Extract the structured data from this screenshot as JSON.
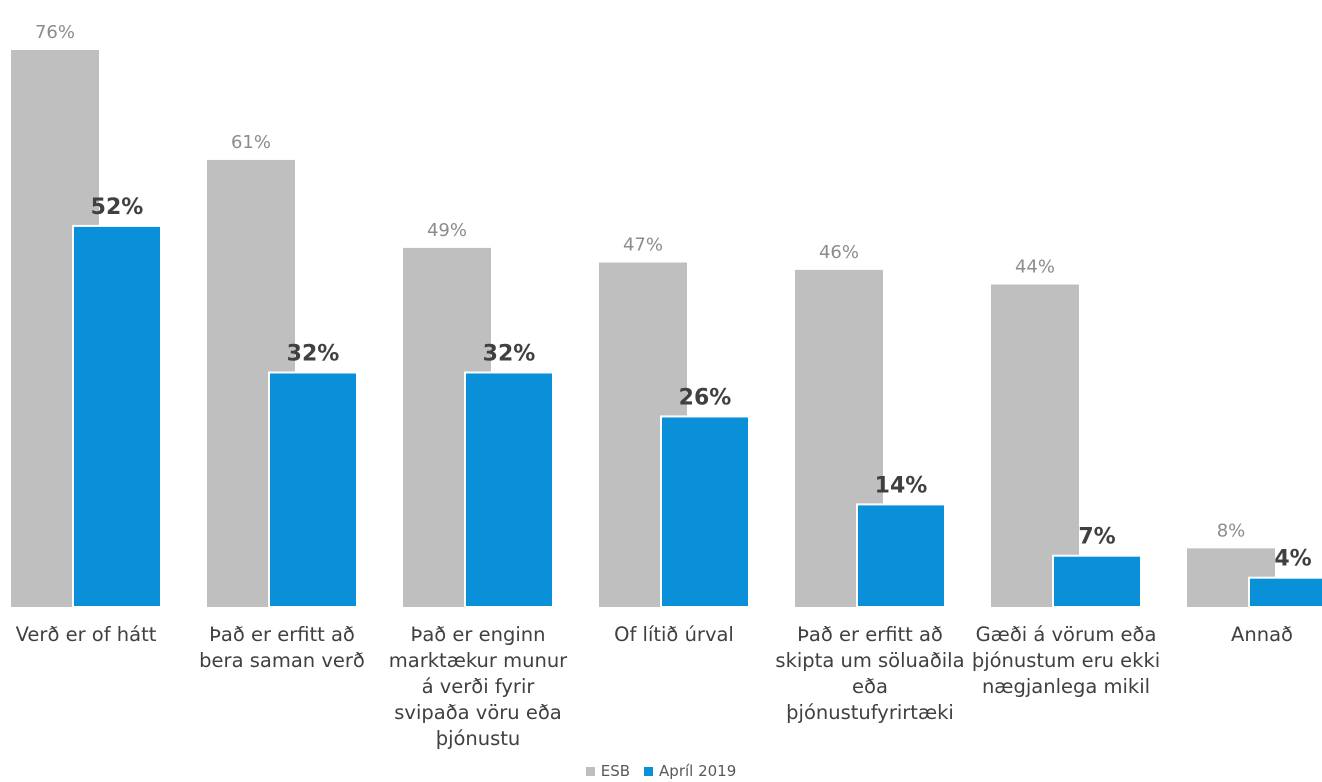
{
  "chart_data": {
    "type": "bar",
    "categories": [
      "Verð er of hátt",
      "Það er erfitt að bera saman verð",
      "Það er enginn marktækur munur á verði fyrir svipaða vöru eða þjónustu",
      "Of lítið úrval",
      "Það er erfitt að skipta um söluaðila eða þjónustufyrirtæki",
      "Gæði á vörum eða þjónustum eru ekki nægjanlega mikil",
      "Annað"
    ],
    "series": [
      {
        "name": "ESB",
        "values": [
          76,
          61,
          49,
          47,
          46,
          44,
          8
        ],
        "labels": [
          "76%",
          "61%",
          "49%",
          "47%",
          "46%",
          "44%",
          "8%"
        ],
        "color": "#BFBFBF"
      },
      {
        "name": "Apríl 2019",
        "values": [
          52,
          32,
          32,
          26,
          14,
          7,
          4
        ],
        "labels": [
          "52%",
          "32%",
          "32%",
          "26%",
          "14%",
          "7%",
          "4%"
        ],
        "color": "#0A8FD9"
      }
    ],
    "ylim": [
      0,
      76
    ],
    "grid": false,
    "legend_position": "bottom-center"
  }
}
